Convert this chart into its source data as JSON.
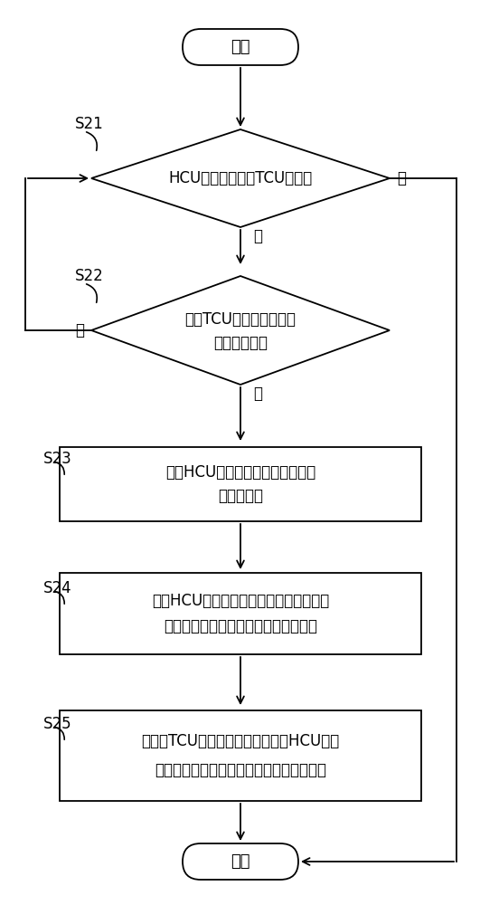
{
  "bg_color": "#ffffff",
  "line_color": "#000000",
  "text_color": "#000000",
  "font_size": 13,
  "start_end_text": [
    "开始",
    "结束"
  ],
  "diamond1_text": "HCU判断是否允许TCU换挡？",
  "diamond2_line1": "所述TCU是否执行同步器",
  "diamond2_line2": "预啮合动作？",
  "box23_line1": "所述HCU将多种动力源切换为电机",
  "box23_line2": "一种动力源",
  "box24_line1": "所述HCU将所述电机的转速调节至与换挡",
  "box24_line2": "后挡位对应的变速器输入轴的转速一致",
  "box25_line1": "当所述TCU完成换挡动作时，所述HCU将所",
  "box25_line2": "述电机一种动力源切换回为所述多种动力源",
  "label_s21": "S21",
  "label_s22": "S22",
  "label_s23": "S23",
  "label_s24": "S24",
  "label_s25": "S25",
  "yes_label": "是",
  "no_label": "否"
}
